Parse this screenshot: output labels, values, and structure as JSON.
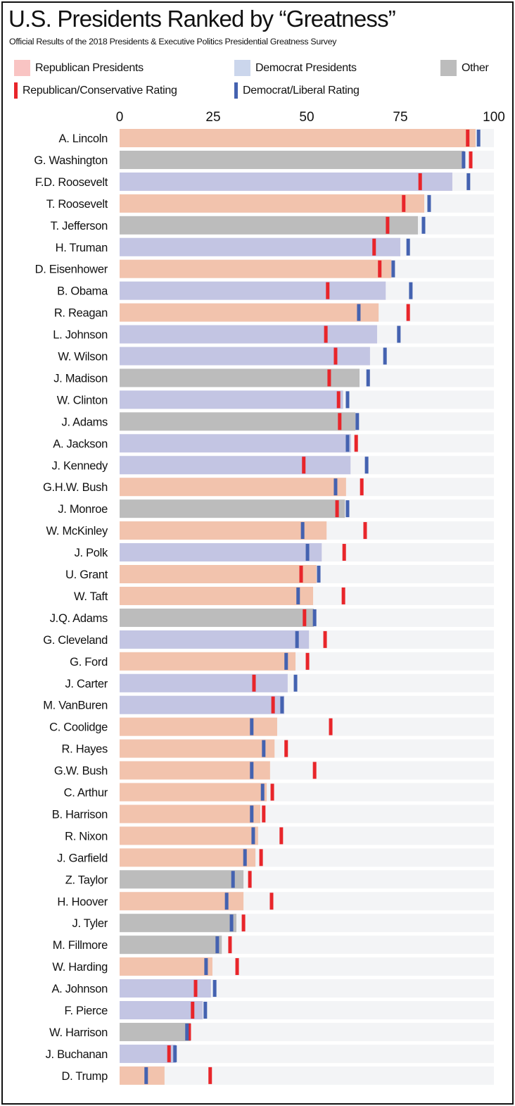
{
  "title": "U.S. Presidents Ranked by “Greatness”",
  "subtitle": "Official Results of the 2018 Presidents & Executive Politics Presidential Greatness Survey",
  "legend": {
    "republican": "Republican Presidents",
    "democrat": "Democrat Presidents",
    "other": "Other",
    "rep_rating": "Republican/Conservative Rating",
    "dem_rating": "Democrat/Liberal Rating"
  },
  "colors": {
    "republican": "#f2c3ad",
    "democrat": "#c3c5e3",
    "other": "#bcbcbc",
    "rep_rating": "#e8252a",
    "dem_rating": "#4462b0",
    "track": "#f3f4f6"
  },
  "chart_data": {
    "type": "bar",
    "orientation": "horizontal",
    "xlim": [
      0,
      100
    ],
    "xticks": [
      "0",
      "25",
      "50",
      "75",
      "100"
    ],
    "grid": false,
    "legend_position": "top",
    "fields": [
      "president",
      "party",
      "overall",
      "republican_conservative_rating",
      "democrat_liberal_rating"
    ],
    "rows": [
      [
        "A. Lincoln",
        "republican",
        95.1,
        93.0,
        95.9
      ],
      [
        "G. Washington",
        "other",
        92.1,
        93.8,
        91.9
      ],
      [
        "F.D. Roosevelt",
        "democrat",
        88.9,
        80.3,
        93.2
      ],
      [
        "T. Roosevelt",
        "republican",
        81.4,
        75.9,
        82.7
      ],
      [
        "T. Jefferson",
        "other",
        79.7,
        71.6,
        81.2
      ],
      [
        "H. Truman",
        "democrat",
        75.0,
        68.0,
        77.1
      ],
      [
        "D. Eisenhower",
        "republican",
        72.6,
        69.5,
        73.1
      ],
      [
        "B. Obama",
        "democrat",
        71.1,
        55.6,
        77.8
      ],
      [
        "R. Reagan",
        "republican",
        69.2,
        77.1,
        63.9
      ],
      [
        "L. Johnson",
        "democrat",
        68.8,
        55.1,
        74.6
      ],
      [
        "W. Wilson",
        "democrat",
        66.9,
        57.7,
        70.9
      ],
      [
        "J. Madison",
        "other",
        64.1,
        56.0,
        66.4
      ],
      [
        "W. Clinton",
        "democrat",
        59.7,
        58.5,
        60.9
      ],
      [
        "J. Adams",
        "other",
        63.0,
        58.8,
        63.5
      ],
      [
        "A. Jackson",
        "democrat",
        61.8,
        63.2,
        60.9
      ],
      [
        "J. Kennedy",
        "democrat",
        61.7,
        49.2,
        66.0
      ],
      [
        "G.H.W. Bush",
        "republican",
        60.5,
        64.7,
        57.7
      ],
      [
        "J. Monroe",
        "other",
        60.2,
        58.1,
        60.9
      ],
      [
        "W. McKinley",
        "republican",
        55.3,
        65.6,
        48.9
      ],
      [
        "J. Polk",
        "democrat",
        54.0,
        60.0,
        50.2
      ],
      [
        "U. Grant",
        "republican",
        52.6,
        48.5,
        53.2
      ],
      [
        "W. Taft",
        "republican",
        51.7,
        59.8,
        47.7
      ],
      [
        "J.Q. Adams",
        "other",
        51.9,
        49.4,
        52.1
      ],
      [
        "G. Cleveland",
        "democrat",
        50.6,
        54.9,
        47.4
      ],
      [
        "G. Ford",
        "republican",
        47.0,
        50.2,
        44.5
      ],
      [
        "J. Carter",
        "democrat",
        44.9,
        35.9,
        47.0
      ],
      [
        "M. VanBuren",
        "democrat",
        44.0,
        41.0,
        43.4
      ],
      [
        "C. Coolidge",
        "republican",
        42.1,
        56.4,
        35.3
      ],
      [
        "R. Hayes",
        "republican",
        41.4,
        44.5,
        38.5
      ],
      [
        "G.W. Bush",
        "republican",
        40.2,
        52.1,
        35.3
      ],
      [
        "C. Arthur",
        "republican",
        39.3,
        40.8,
        38.2
      ],
      [
        "B. Harrison",
        "republican",
        37.6,
        38.5,
        35.3
      ],
      [
        "R. Nixon",
        "republican",
        37.0,
        43.2,
        35.7
      ],
      [
        "J. Garfield",
        "republican",
        36.3,
        37.8,
        33.5
      ],
      [
        "Z. Taylor",
        "other",
        33.1,
        34.8,
        30.3
      ],
      [
        "H. Hoover",
        "republican",
        33.1,
        40.6,
        28.6
      ],
      [
        "J. Tyler",
        "other",
        31.2,
        33.1,
        29.9
      ],
      [
        "M. Fillmore",
        "other",
        27.3,
        29.5,
        26.1
      ],
      [
        "W. Harding",
        "republican",
        24.8,
        31.4,
        23.1
      ],
      [
        "A. Johnson",
        "democrat",
        24.4,
        20.3,
        25.4
      ],
      [
        "F. Pierce",
        "democrat",
        22.2,
        19.5,
        22.9
      ],
      [
        "W. Harrison",
        "other",
        19.0,
        18.6,
        18.0
      ],
      [
        "J. Buchanan",
        "democrat",
        15.0,
        13.2,
        14.8
      ],
      [
        "D. Trump",
        "republican",
        12.0,
        24.2,
        7.1
      ]
    ]
  }
}
